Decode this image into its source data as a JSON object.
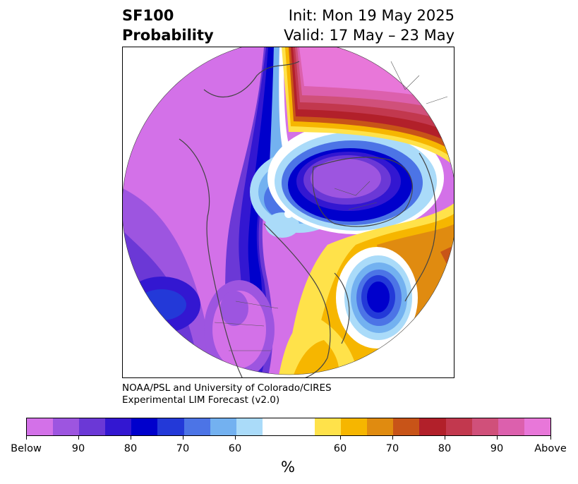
{
  "header": {
    "title_line1": "SF100",
    "title_line2": "Probability",
    "init": "Init: Mon 19 May 2025",
    "valid": "Valid: 17 May – 23 May"
  },
  "credit": {
    "line1": "NOAA/PSL and University of Colorado/CIRES",
    "line2": "Experimental LIM Forecast (v2.0)"
  },
  "colorbar": {
    "unit": "%",
    "below_colors": [
      "#d371e8",
      "#9d55e0",
      "#6b38d6",
      "#3317d1",
      "#0000cc",
      "#2339d8",
      "#4c74e6",
      "#73b1f0",
      "#aadbf9"
    ],
    "neutral_color": "#ffffff",
    "above_colors": [
      "#ffe24a",
      "#f6b600",
      "#e08b10",
      "#c85418",
      "#b2202a",
      "#c2384e",
      "#d0507a",
      "#dc60ad",
      "#e877d9"
    ],
    "tick_labels": [
      "Below",
      "90",
      "80",
      "70",
      "60",
      "60",
      "70",
      "80",
      "90",
      "Above"
    ]
  },
  "map": {
    "projection": "north polar stereographic",
    "icons": [
      "coastline-overlay",
      "country-borders-overlay"
    ]
  }
}
